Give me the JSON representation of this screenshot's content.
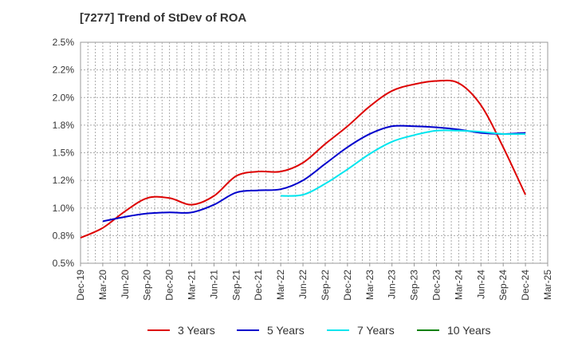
{
  "title": "[7277]  Trend of StDev of ROA",
  "chart_data": {
    "type": "line",
    "title": "[7277]  Trend of StDev of ROA",
    "xlabel": "",
    "ylabel": "",
    "x": [
      "Dec-19",
      "Mar-20",
      "Jun-20",
      "Sep-20",
      "Dec-20",
      "Mar-21",
      "Jun-21",
      "Sep-21",
      "Dec-21",
      "Mar-22",
      "Jun-22",
      "Sep-22",
      "Dec-22",
      "Mar-23",
      "Jun-23",
      "Sep-23",
      "Dec-23",
      "Mar-24",
      "Jun-24",
      "Sep-24",
      "Dec-24",
      "Mar-25"
    ],
    "ylim": [
      0.5,
      2.5
    ],
    "yticks": [
      "0.5%",
      "0.8%",
      "1.0%",
      "1.2%",
      "1.5%",
      "1.8%",
      "2.0%",
      "2.2%",
      "2.5%"
    ],
    "grid": true,
    "legend_position": "bottom",
    "series": [
      {
        "name": "3 Years",
        "color": "#dd0000",
        "values": [
          0.73,
          0.82,
          0.97,
          1.09,
          1.09,
          1.03,
          1.11,
          1.29,
          1.33,
          1.33,
          1.41,
          1.58,
          1.74,
          1.92,
          2.06,
          2.12,
          2.15,
          2.13,
          1.93,
          1.55,
          1.12,
          null
        ]
      },
      {
        "name": "5 Years",
        "color": "#0000cc",
        "values": [
          null,
          0.88,
          0.92,
          0.95,
          0.96,
          0.96,
          1.03,
          1.14,
          1.16,
          1.17,
          1.25,
          1.4,
          1.55,
          1.67,
          1.74,
          1.74,
          1.73,
          1.71,
          1.68,
          1.67,
          1.68,
          null
        ]
      },
      {
        "name": "7 Years",
        "color": "#00e5ee",
        "values": [
          null,
          null,
          null,
          null,
          null,
          null,
          null,
          null,
          null,
          1.11,
          1.12,
          1.22,
          1.35,
          1.49,
          1.6,
          1.66,
          1.7,
          1.7,
          1.69,
          1.67,
          1.67,
          null
        ]
      },
      {
        "name": "10 Years",
        "color": "#008000",
        "values": [
          null,
          null,
          null,
          null,
          null,
          null,
          null,
          null,
          null,
          null,
          null,
          null,
          null,
          null,
          null,
          null,
          null,
          null,
          null,
          null,
          null,
          null
        ]
      }
    ]
  }
}
